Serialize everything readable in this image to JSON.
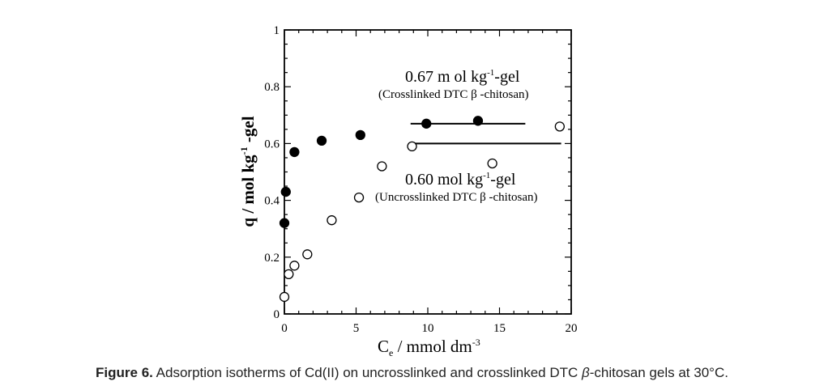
{
  "chart_data": {
    "type": "scatter",
    "title": "",
    "xlabel": "C",
    "xlabel_sub": "e",
    "xlabel_rest": " / mmol dm",
    "xlabel_sup": "-3",
    "ylabel": "q / mol kg",
    "ylabel_sup": "-1",
    "ylabel_rest": " -gel",
    "xlim": [
      0,
      20
    ],
    "ylim": [
      0,
      1
    ],
    "xticks": [
      0,
      5,
      10,
      15,
      20
    ],
    "xtick_labels": [
      "0",
      "5",
      "10",
      "15",
      "20"
    ],
    "yticks": [
      0,
      0.2,
      0.4,
      0.6,
      0.8,
      1
    ],
    "ytick_labels": [
      "0",
      "0.2",
      "0.4",
      "0.6",
      "0.8",
      "1"
    ],
    "series": [
      {
        "name": "Crosslinked DTC β-chitosan",
        "marker": "filled-circle",
        "color": "#000000",
        "x": [
          0.0,
          0.1,
          0.7,
          2.6,
          5.3,
          9.9,
          13.5
        ],
        "y": [
          0.32,
          0.43,
          0.57,
          0.61,
          0.63,
          0.67,
          0.68
        ]
      },
      {
        "name": "Uncrosslinked DTC β-chitosan",
        "marker": "open-circle",
        "color": "#000000",
        "x": [
          0.0,
          0.3,
          0.7,
          1.6,
          3.3,
          5.2,
          6.8,
          8.9,
          14.5,
          19.2
        ],
        "y": [
          0.06,
          0.14,
          0.17,
          0.21,
          0.33,
          0.41,
          0.52,
          0.59,
          0.53,
          0.66
        ]
      }
    ],
    "reference_lines": [
      {
        "name": "crosslinked-plateau",
        "y": 0.67,
        "x_start": 8.8,
        "x_end": 16.8
      },
      {
        "name": "uncrosslinked-plateau",
        "y": 0.6,
        "x_start": 9.0,
        "x_end": 19.3
      }
    ],
    "annotations": {
      "top_value": "0.67 m ol kg",
      "top_sup": "-1",
      "top_rest": "-gel",
      "top_sub_label": "(Crosslinked DTC β -chitosan)",
      "bottom_value": "0.60 mol kg",
      "bottom_sup": "-1",
      "bottom_rest": "-gel",
      "bottom_sub_label": "(Uncrosslinked DTC β -chitosan)"
    }
  },
  "caption": {
    "label": "Figure 6.",
    "text_before": " Adsorption isotherms of Cd(II) on uncrosslinked and crosslinked DTC ",
    "beta": "β",
    "text_after": "-chitosan gels at 30°C."
  }
}
